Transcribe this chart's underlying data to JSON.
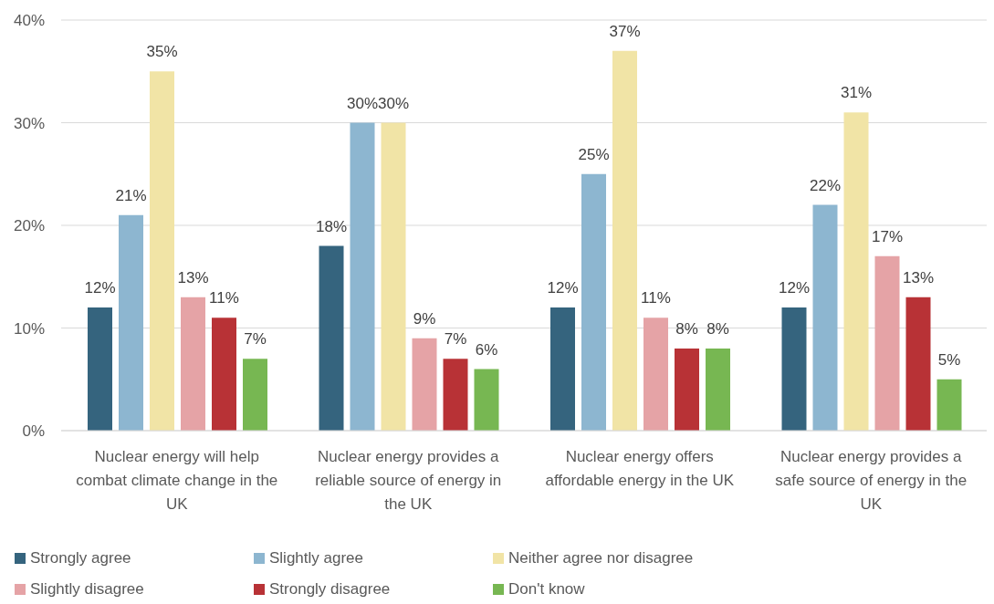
{
  "chart_data": {
    "type": "bar",
    "categories": [
      "Nuclear energy will help combat climate change in the UK",
      "Nuclear energy provides a reliable source of energy in the UK",
      "Nuclear energy offers affordable energy in the UK",
      "Nuclear energy provides a safe source of energy in the UK"
    ],
    "series": [
      {
        "name": "Strongly agree",
        "color": "#35647e",
        "values": [
          12,
          18,
          12,
          12
        ],
        "value_labels": [
          "12%",
          "18%",
          "12%",
          "12%"
        ]
      },
      {
        "name": "Slightly agree",
        "color": "#8db6d0",
        "values": [
          21,
          30,
          25,
          22
        ],
        "value_labels": [
          "21%",
          "30%",
          "25%",
          "22%"
        ]
      },
      {
        "name": "Neither agree nor disagree",
        "color": "#f1e4a6",
        "values": [
          35,
          30,
          37,
          31
        ],
        "value_labels": [
          "35%",
          "30%",
          "37%",
          "31%"
        ]
      },
      {
        "name": "Slightly disagree",
        "color": "#e5a3a6",
        "values": [
          13,
          9,
          11,
          17
        ],
        "value_labels": [
          "13%",
          "9%",
          "11%",
          "17%"
        ]
      },
      {
        "name": "Strongly disagree",
        "color": "#b83236",
        "values": [
          11,
          7,
          8,
          13
        ],
        "value_labels": [
          "11%",
          "7%",
          "8%",
          "13%"
        ]
      },
      {
        "name": "Don't know",
        "color": "#77b752",
        "values": [
          7,
          6,
          8,
          5
        ],
        "value_labels": [
          "7%",
          "6%",
          "8%",
          "5%"
        ]
      }
    ],
    "ylim": [
      0,
      40
    ],
    "yticks": [
      {
        "value": 0,
        "label": "0%"
      },
      {
        "value": 10,
        "label": "10%"
      },
      {
        "value": 20,
        "label": "20%"
      },
      {
        "value": 30,
        "label": "30%"
      },
      {
        "value": 40,
        "label": "40%"
      }
    ],
    "grid": "y",
    "legend": "bottom"
  }
}
